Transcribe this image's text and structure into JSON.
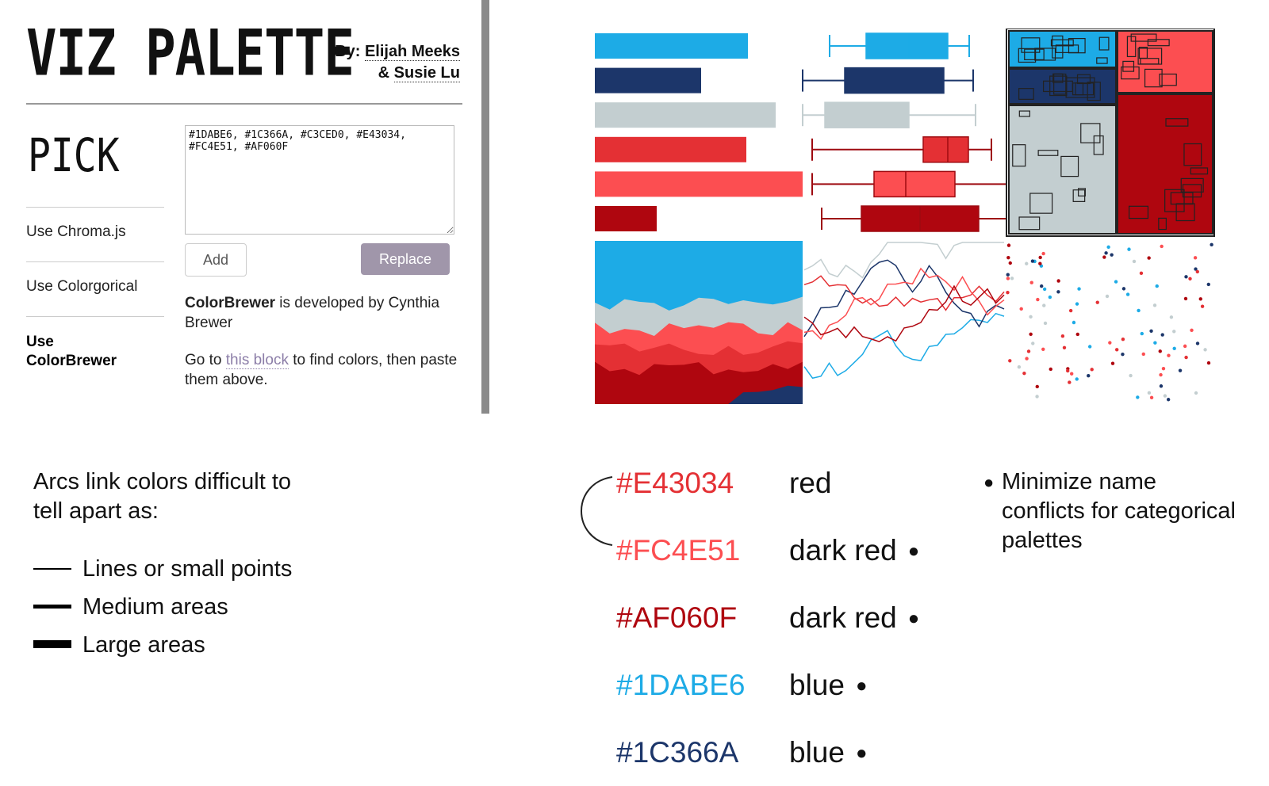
{
  "header": {
    "title": "VIZ PALETTE",
    "by_prefix": "By:",
    "author1": "Elijah Meeks",
    "author2_prefix": "&",
    "author2": "Susie Lu"
  },
  "section_title": "PICK",
  "sidebar": {
    "items": [
      {
        "label": "Use Chroma.js"
      },
      {
        "label": "Use Colorgorical"
      },
      {
        "label": "Use ColorBrewer"
      }
    ]
  },
  "textarea_value": "#1DABE6, #1C366A, #C3CED0, #E43034, #FC4E51, #AF060F",
  "buttons": {
    "add": "Add",
    "replace": "Replace"
  },
  "colorbrewer_text": {
    "bold": "ColorBrewer",
    "rest": " is developed by Cynthia Brewer",
    "goto_prefix": "Go to ",
    "link": "this block",
    "goto_suffix": " to find colors, then paste them above."
  },
  "colors": {
    "blue": "#1DABE6",
    "navy": "#1C366A",
    "gray": "#C3CED0",
    "red": "#E43034",
    "coral": "#FC4E51",
    "darkred": "#AF060F"
  },
  "arcs_caption": "Arcs link colors difficult to tell apart as:",
  "legend": [
    {
      "label": "Lines or small points"
    },
    {
      "label": "Medium areas"
    },
    {
      "label": "Large areas"
    }
  ],
  "color_list": [
    {
      "hex": "#E43034",
      "name": "red",
      "bullet": false
    },
    {
      "hex": "#FC4E51",
      "name": "dark red",
      "bullet": true
    },
    {
      "hex": "#AF060F",
      "name": "dark red",
      "bullet": true
    },
    {
      "hex": "#1DABE6",
      "name": "blue",
      "bullet": true
    },
    {
      "hex": "#1C366A",
      "name": "blue",
      "bullet": true
    }
  ],
  "note": "Minimize name conflicts for categorical palettes",
  "bullet_char": "●"
}
